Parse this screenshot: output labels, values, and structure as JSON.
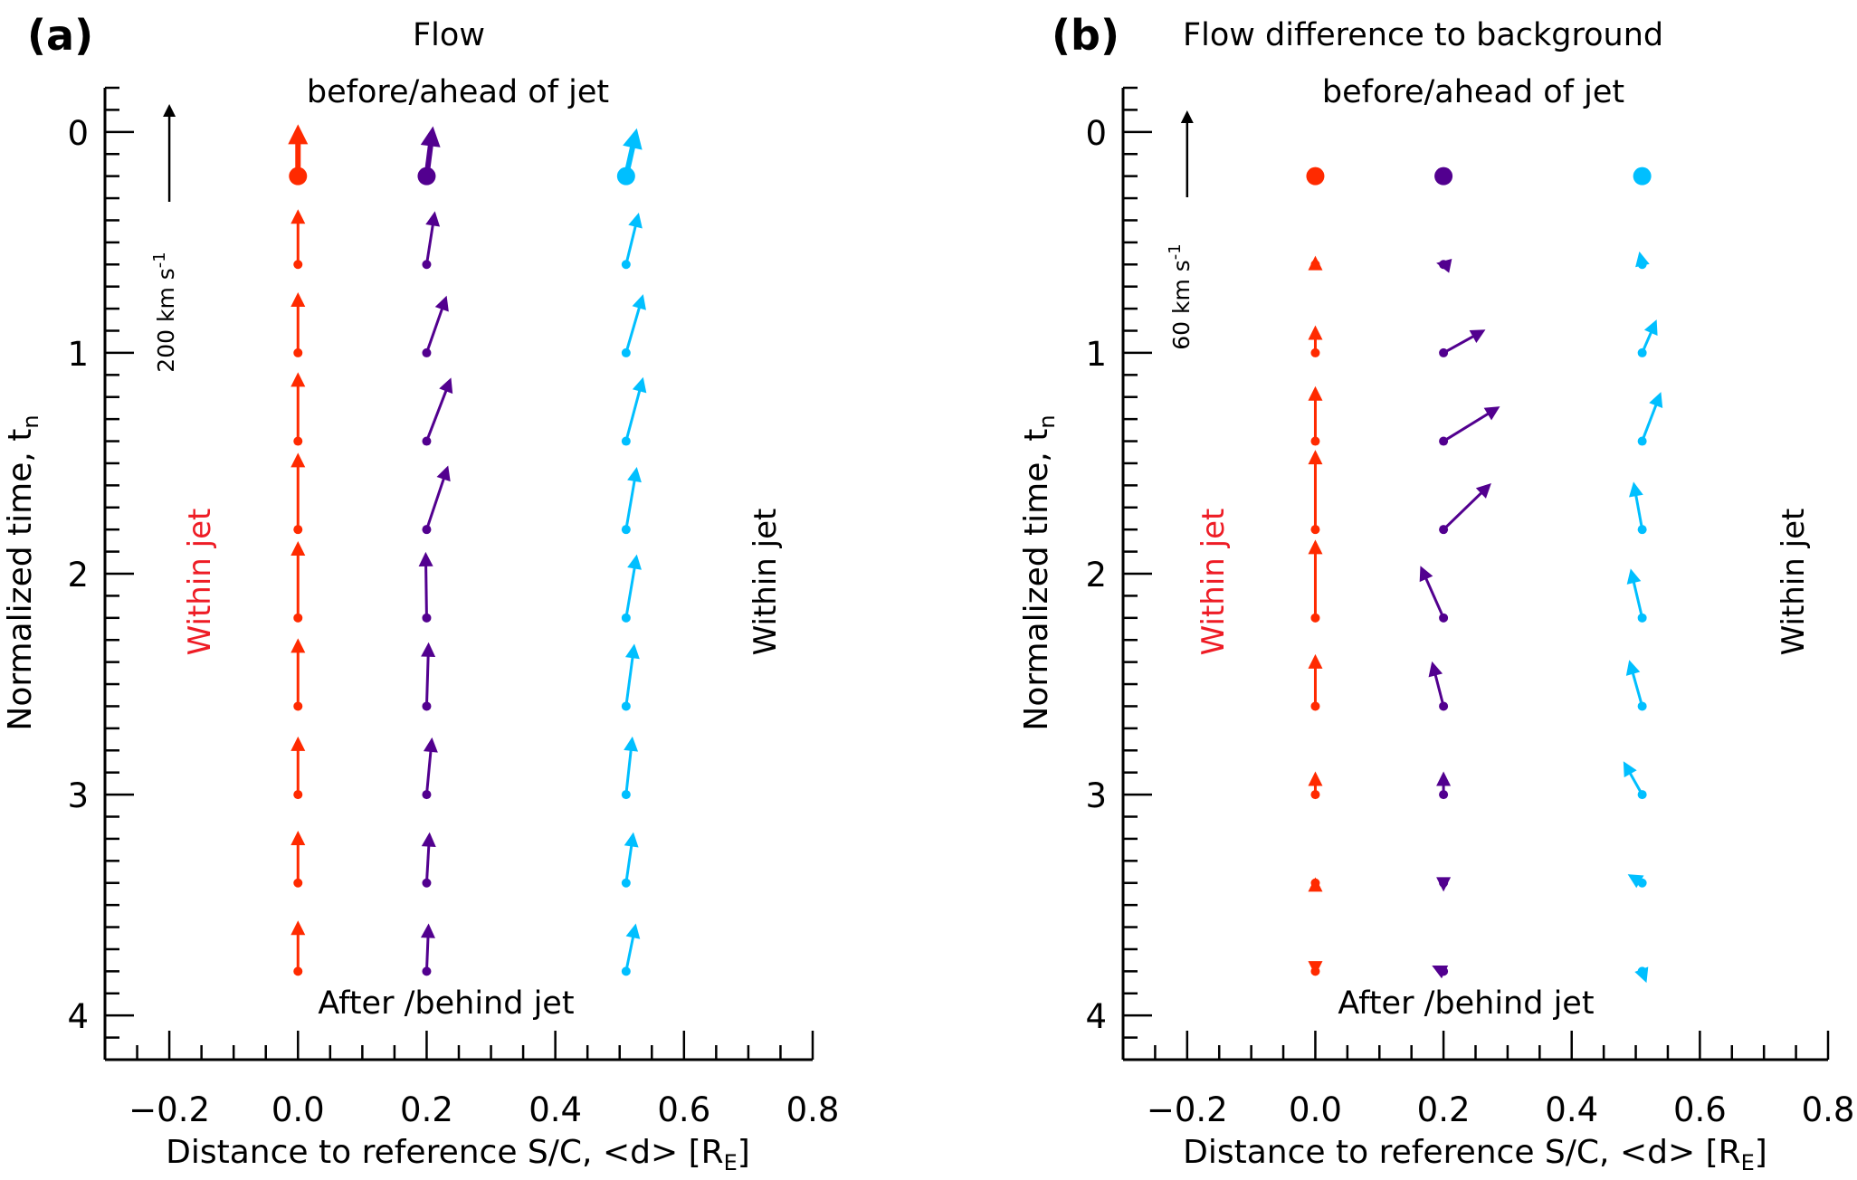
{
  "chart_data": [
    {
      "type": "quiver",
      "panel_label": "(a)",
      "title": "Flow",
      "top_annotation": "before/ahead of jet",
      "bottom_annotation": "After /behind jet",
      "left_annotation": "Within jet",
      "right_annotation": "Within jet",
      "xlabel": "Distance to reference S/C, <d> [R",
      "xlabel_sub": "E",
      "xlabel_end": "]",
      "ylabel": "Normalized time, t",
      "ylabel_sub": "n",
      "xlim": [
        -0.3,
        0.8
      ],
      "ylim": [
        4.2,
        -0.2
      ],
      "xticks": [
        -0.2,
        0.0,
        0.2,
        0.4,
        0.6,
        0.8
      ],
      "xtick_labels": [
        "−0.2",
        "0.0",
        "0.2",
        "0.4",
        "0.6",
        "0.8"
      ],
      "yticks": [
        0,
        1,
        2,
        3,
        4
      ],
      "ytick_labels": [
        "0",
        "1",
        "2",
        "3",
        "4"
      ],
      "scale_arrow": {
        "value": 200,
        "label": "200 km s",
        "label_sup": "-1",
        "x": -0.2
      },
      "units": "km/s",
      "t": [
        0.2,
        0.6,
        1.0,
        1.4,
        1.8,
        2.2,
        2.6,
        3.0,
        3.4,
        3.8
      ],
      "series": [
        {
          "name": "S/C at 0.0",
          "color": "#ff2a00",
          "x": 0.0,
          "vx": [
            0,
            0,
            0,
            0,
            0,
            0,
            0,
            0,
            0,
            0
          ],
          "vy": [
            106,
            113,
            124,
            141,
            157,
            157,
            139,
            119,
            107,
            104
          ]
        },
        {
          "name": "S/C at 0.2",
          "color": "#52008f",
          "x": 0.2,
          "vx": [
            13,
            17,
            41,
            50,
            44,
            -2,
            4,
            11,
            6,
            4
          ],
          "vy": [
            102,
            109,
            117,
            130,
            131,
            135,
            131,
            117,
            104,
            98
          ]
        },
        {
          "name": "S/C at 0.51",
          "color": "#00bfff",
          "x": 0.51,
          "vx": [
            22,
            26,
            35,
            35,
            22,
            22,
            17,
            13,
            15,
            20
          ],
          "vy": [
            98,
            106,
            120,
            131,
            128,
            130,
            128,
            119,
            104,
            98
          ]
        }
      ]
    },
    {
      "type": "quiver",
      "panel_label": "(b)",
      "title": "Flow difference to background",
      "top_annotation": "before/ahead of jet",
      "bottom_annotation": "After /behind jet",
      "left_annotation": "Within jet",
      "right_annotation": "Within jet",
      "xlabel": "Distance to reference S/C, <d> [R",
      "xlabel_sub": "E",
      "xlabel_end": "]",
      "ylabel": "Normalized time, t",
      "ylabel_sub": "n",
      "xlim": [
        -0.3,
        0.8
      ],
      "ylim": [
        4.2,
        -0.2
      ],
      "xticks": [
        -0.2,
        0.0,
        0.2,
        0.4,
        0.6,
        0.8
      ],
      "xtick_labels": [
        "−0.2",
        "0.0",
        "0.2",
        "0.4",
        "0.6",
        "0.8"
      ],
      "yticks": [
        0,
        1,
        2,
        3,
        4
      ],
      "ytick_labels": [
        "0",
        "1",
        "2",
        "3",
        "4"
      ],
      "scale_arrow": {
        "value": 60,
        "label": "60 km s",
        "label_sup": "-1",
        "x": -0.2
      },
      "units": "km/s",
      "t": [
        0.2,
        0.6,
        1.0,
        1.4,
        1.8,
        2.2,
        2.6,
        3.0,
        3.4,
        3.8
      ],
      "series": [
        {
          "name": "S/C at 0.0",
          "color": "#ff2a00",
          "x": 0.0,
          "vx": [
            0,
            0,
            0,
            0,
            0,
            0,
            0,
            0,
            0,
            0
          ],
          "vy": [
            0,
            6,
            19,
            38,
            55,
            54,
            36,
            16,
            4,
            -3
          ]
        },
        {
          "name": "S/C at 0.2",
          "color": "#52008f",
          "x": 0.2,
          "vx": [
            0,
            -5,
            29,
            39,
            33,
            -16,
            -8,
            0,
            0,
            -8
          ],
          "vy": [
            0,
            1,
            16,
            24,
            32,
            36,
            31,
            16,
            -6,
            4
          ]
        },
        {
          "name": "S/C at 0.51",
          "color": "#00bfff",
          "x": 0.51,
          "vx": [
            0,
            -2,
            10,
            13,
            -6,
            -8,
            -9,
            -13,
            -10,
            3
          ],
          "vy": [
            0,
            9,
            23,
            34,
            33,
            34,
            32,
            23,
            6,
            -8
          ]
        }
      ]
    }
  ]
}
